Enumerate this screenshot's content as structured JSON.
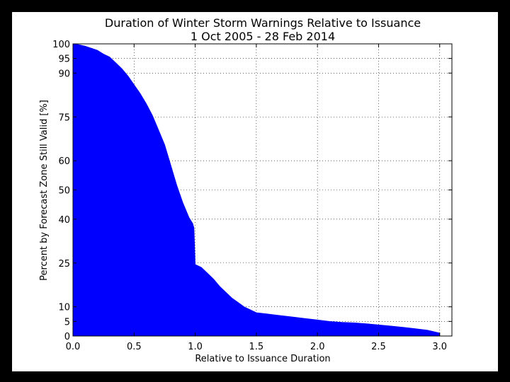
{
  "chart_data": {
    "type": "area",
    "title": "Duration of Winter Storm Warnings Relative to Issuance",
    "subtitle": "1 Oct 2005 - 28 Feb 2014",
    "xlabel": "Relative to Issuance Duration",
    "ylabel": "Percent by Forecast Zone Still Valid [%]",
    "xlim": [
      0.0,
      3.1
    ],
    "ylim": [
      0,
      100
    ],
    "grid": true,
    "legend": "none",
    "fill_color": "#0000ff",
    "x_ticks": [
      0.0,
      0.5,
      1.0,
      1.5,
      2.0,
      2.5,
      3.0
    ],
    "x_tick_labels": [
      "0.0",
      "0.5",
      "1.0",
      "1.5",
      "2.0",
      "2.5",
      "3.0"
    ],
    "y_ticks": [
      0,
      5,
      10,
      25,
      40,
      50,
      60,
      75,
      90,
      95,
      100
    ],
    "y_tick_labels": [
      "0",
      "5",
      "10",
      "25",
      "40",
      "50",
      "60",
      "75",
      "90",
      "95",
      "100"
    ],
    "series": [
      {
        "x": [
          0.0,
          0.05,
          0.1,
          0.15,
          0.2,
          0.25,
          0.3,
          0.35,
          0.4,
          0.45,
          0.5,
          0.55,
          0.6,
          0.65,
          0.7,
          0.75,
          0.8,
          0.85,
          0.9,
          0.95,
          0.98,
          0.99,
          1.0,
          1.0,
          1.05,
          1.1,
          1.15,
          1.2,
          1.25,
          1.3,
          1.35,
          1.4,
          1.45,
          1.5,
          1.6,
          1.7,
          1.8,
          1.9,
          2.0,
          2.1,
          2.2,
          2.3,
          2.4,
          2.5,
          2.6,
          2.7,
          2.8,
          2.9,
          2.95,
          3.0
        ],
        "y": [
          100,
          99.7,
          99.2,
          98.5,
          97.8,
          96.5,
          95.5,
          93.5,
          91.5,
          89.0,
          86.0,
          83.0,
          79.5,
          75.5,
          70.5,
          65.5,
          58.5,
          51.5,
          45.5,
          40.5,
          38.5,
          37.0,
          24.5,
          24.5,
          23.5,
          21.5,
          19.5,
          17.0,
          15.0,
          13.0,
          11.5,
          10.0,
          9.0,
          8.0,
          7.5,
          7.0,
          6.5,
          6.0,
          5.5,
          5.0,
          4.7,
          4.5,
          4.2,
          3.8,
          3.4,
          3.0,
          2.5,
          2.0,
          1.5,
          1.0
        ]
      }
    ]
  }
}
